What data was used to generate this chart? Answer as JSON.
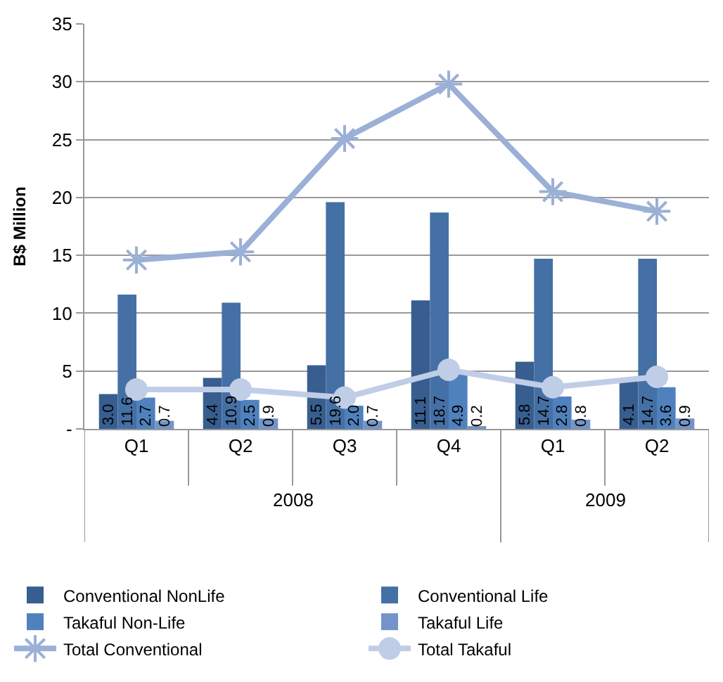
{
  "chart_data": {
    "type": "bar",
    "ylabel": "B$ Million",
    "categories": [
      "Q1",
      "Q2",
      "Q3",
      "Q4",
      "Q1",
      "Q2"
    ],
    "series": [
      {
        "name": "Conventional NonLife",
        "color": "#375e8f",
        "values": [
          3.0,
          4.4,
          5.5,
          11.1,
          5.8,
          4.1
        ],
        "value_labels": [
          "3.0",
          "4.4",
          "5.5",
          "11.1",
          "5.8",
          "4.1"
        ]
      },
      {
        "name": "Conventional Life",
        "color": "#4470a5",
        "values": [
          11.6,
          10.9,
          19.6,
          18.7,
          14.7,
          14.7
        ],
        "value_labels": [
          "11.6",
          "10.9",
          "19.6",
          "18.7",
          "14.7",
          "14.7"
        ]
      },
      {
        "name": "Takaful Non-Life",
        "color": "#4f81bd",
        "values": [
          2.7,
          2.5,
          2.0,
          4.9,
          2.8,
          3.6
        ],
        "value_labels": [
          "2.7",
          "2.5",
          "2.0",
          "4.9",
          "2.8",
          "3.6"
        ]
      },
      {
        "name": "Takaful Life",
        "color": "#7394c8",
        "values": [
          0.7,
          0.9,
          0.7,
          0.2,
          0.8,
          0.9
        ],
        "value_labels": [
          "0.7",
          "0.9",
          "0.7",
          "0.2",
          "0.8",
          "0.9"
        ]
      },
      {
        "name": "Total Conventional",
        "type": "line",
        "marker": "cross",
        "color": "#9bb0d6",
        "values": [
          14.6,
          15.3,
          25.1,
          29.8,
          20.5,
          18.8
        ]
      },
      {
        "name": "Total Takaful",
        "type": "line",
        "marker": "circle",
        "color": "#c0cde6",
        "values": [
          3.4,
          3.4,
          2.7,
          5.1,
          3.6,
          4.5
        ]
      }
    ],
    "ylim": [
      0,
      35
    ],
    "yticks": [
      {
        "value": 0,
        "label": "-"
      },
      5,
      10,
      15,
      20,
      25,
      30,
      35
    ],
    "grid": "y",
    "legend": "bottom",
    "annotations": [
      "2008",
      "2009"
    ]
  }
}
